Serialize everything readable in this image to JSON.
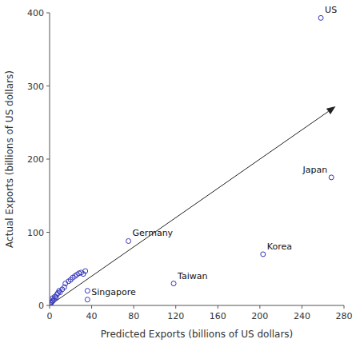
{
  "chart_data": {
    "type": "scatter",
    "xlabel": "Predicted Exports (billions of US dollars)",
    "ylabel": "Actual Exports (billions of US dollars)",
    "xlim": [
      0,
      280
    ],
    "ylim": [
      0,
      400
    ],
    "xticks": [
      0,
      40,
      80,
      120,
      160,
      200,
      240,
      280
    ],
    "yticks": [
      0,
      100,
      200,
      300,
      400
    ],
    "grid": false,
    "color": "#3333bb",
    "x": [
      1,
      1,
      2,
      3,
      3,
      4,
      5,
      6,
      7,
      8,
      9,
      10,
      12,
      14,
      15,
      18,
      20,
      22,
      24,
      26,
      28,
      30,
      32,
      34,
      36,
      75,
      36,
      118,
      203,
      258,
      268
    ],
    "values": [
      1,
      3,
      5,
      6,
      10,
      8,
      12,
      11,
      15,
      17,
      20,
      18,
      22,
      25,
      30,
      33,
      35,
      38,
      40,
      42,
      44,
      45,
      43,
      47,
      20,
      88,
      8,
      30,
      70,
      393,
      175
    ],
    "arrow": {
      "start": [
        0,
        0
      ],
      "end": [
        272,
        272
      ]
    },
    "annotations": [
      {
        "text": "Germany",
        "x": 75,
        "y": 88
      },
      {
        "text": "Singapore",
        "x": 36,
        "y": 8
      },
      {
        "text": "Taiwan",
        "x": 118,
        "y": 30
      },
      {
        "text": "Korea",
        "x": 203,
        "y": 70
      },
      {
        "text": "US",
        "x": 258,
        "y": 393
      },
      {
        "text": "Japan",
        "x": 268,
        "y": 175
      }
    ]
  }
}
